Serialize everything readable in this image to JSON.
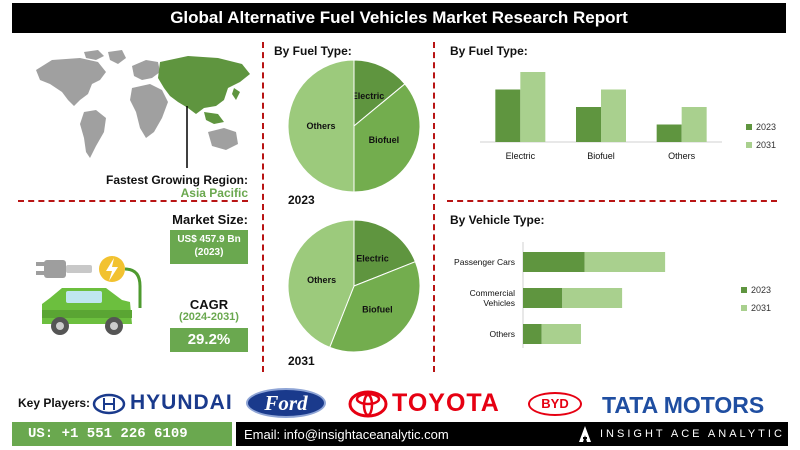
{
  "title": "Global Alternative Fuel Vehicles Market Research Report",
  "region": {
    "label": "Fastest Growing Region:",
    "value": "Asia Pacific"
  },
  "market_size": {
    "label": "Market Size:",
    "value": "US$ 457.9 Bn",
    "year": "(2023)"
  },
  "cagr": {
    "label": "CAGR",
    "period": "(2024-2031)",
    "value": "29.2%"
  },
  "fuel_type_pies": {
    "heading": "By Fuel Type:",
    "label_2023": "2023",
    "label_2031": "2031"
  },
  "fuel_bar": {
    "heading": "By Fuel Type:"
  },
  "vehicle_bar": {
    "heading": "By Vehicle Type:"
  },
  "chart_data": [
    {
      "type": "pie",
      "year_label": "2023",
      "categories": [
        "Electric",
        "Biofuel",
        "Others"
      ],
      "values": [
        14,
        36,
        50
      ],
      "colors": [
        "#5f953f",
        "#73ad4e",
        "#9cca7c"
      ]
    },
    {
      "type": "pie",
      "year_label": "2031",
      "categories": [
        "Electric",
        "Biofuel",
        "Others"
      ],
      "values": [
        19,
        37,
        44
      ],
      "colors": [
        "#5f953f",
        "#73ad4e",
        "#9cca7c"
      ]
    },
    {
      "type": "bar",
      "title": "By Fuel Type:",
      "categories": [
        "Electric",
        "Biofuel",
        "Others"
      ],
      "series": [
        {
          "name": "2023",
          "values": [
            3,
            2,
            1
          ]
        },
        {
          "name": "2031",
          "values": [
            4,
            3,
            2
          ]
        }
      ],
      "colors": [
        "#5f953f",
        "#a9d08e"
      ],
      "legend": "right"
    },
    {
      "type": "bar",
      "orientation": "horizontal",
      "title": "By Vehicle Type:",
      "categories": [
        "Passenger Cars",
        "Commercial Vehicles",
        "Others"
      ],
      "series": [
        {
          "name": "2023",
          "values": [
            3.3,
            2.1,
            1.0
          ]
        },
        {
          "name": "2031",
          "values": [
            4.3,
            3.2,
            2.1
          ]
        }
      ],
      "colors": [
        "#5f953f",
        "#a9d08e"
      ],
      "legend": "right"
    }
  ],
  "key_players": {
    "label": "Key Players:",
    "logos": [
      "HYUNDAI",
      "Ford",
      "TOYOTA",
      "BYD",
      "TATA MOTORS"
    ]
  },
  "footer": {
    "phone": "US: +1 551 226 6109",
    "email": "Email: info@insightaceanalytic.com",
    "brand": "INSIGHT ACE ANALYTIC"
  },
  "colors": {
    "accent_green": "#6aa84f",
    "dark_green": "#5f953f",
    "light_green": "#a9d08e",
    "divider_red": "#b81414",
    "toyota_red": "#e60012",
    "ford_blue": "#1a3a8c",
    "tata_blue": "#1f4ea1"
  }
}
